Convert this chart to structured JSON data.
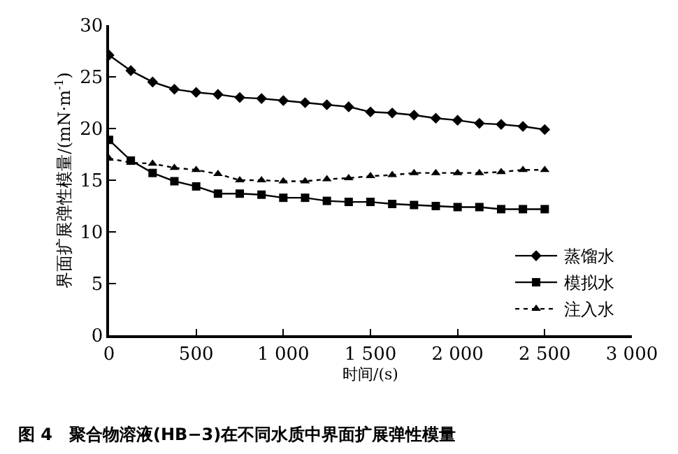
{
  "chart_data": {
    "type": "line",
    "xlabel": "时间/(s)",
    "ylabel": "界面扩展弹性模量/(mN·m$^{-1}$)",
    "x": [
      0,
      125,
      250,
      375,
      500,
      625,
      750,
      875,
      1000,
      1125,
      1250,
      1375,
      1500,
      1625,
      1750,
      1875,
      2000,
      2125,
      2250,
      2375,
      2500
    ],
    "series": [
      {
        "name": "蒸馏水",
        "color": "#000000",
        "marker": "diamond",
        "line_style": "solid",
        "values": [
          27.1,
          25.6,
          24.5,
          23.8,
          23.5,
          23.3,
          23.0,
          22.9,
          22.7,
          22.5,
          22.3,
          22.1,
          21.6,
          21.5,
          21.3,
          21.0,
          20.8,
          20.5,
          20.4,
          20.2,
          19.9
        ]
      },
      {
        "name": "模拟水",
        "color": "#000000",
        "marker": "square",
        "line_style": "solid",
        "values": [
          18.9,
          16.9,
          15.7,
          14.9,
          14.4,
          13.7,
          13.7,
          13.6,
          13.3,
          13.3,
          13.0,
          12.9,
          12.9,
          12.7,
          12.6,
          12.5,
          12.4,
          12.4,
          12.2,
          12.2,
          12.2
        ]
      },
      {
        "name": "注入水",
        "color": "#000000",
        "marker": "triangle",
        "line_style": "dotted",
        "values": [
          17.1,
          16.7,
          16.6,
          16.2,
          16.0,
          15.6,
          15.0,
          15.0,
          14.9,
          14.9,
          15.1,
          15.2,
          15.4,
          15.5,
          15.7,
          15.7,
          15.7,
          15.7,
          15.8,
          16.0,
          16.0
        ]
      }
    ],
    "xlim": [
      0,
      3000
    ],
    "xticks": [
      0,
      500,
      {
        "value": 1000,
        "label": "1 000"
      },
      {
        "value": 1500,
        "label": "1 500"
      },
      {
        "value": 2000,
        "label": "2 000"
      },
      {
        "value": 2500,
        "label": "2 500"
      },
      {
        "value": 3000,
        "label": "3 000"
      }
    ],
    "ylim": [
      0,
      30
    ],
    "yticks": [
      0,
      5,
      10,
      15,
      20,
      25,
      30
    ],
    "legend": "bottom right",
    "annotations": [
      "图 4　聚合物溶液(HB−3)在不同水质中界面扩展弹性模量"
    ]
  }
}
